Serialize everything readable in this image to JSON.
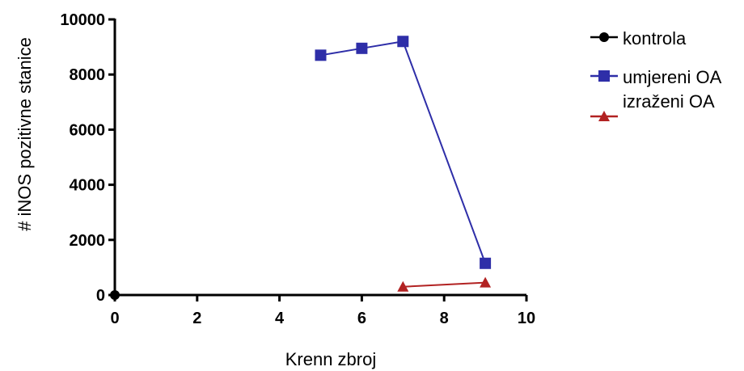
{
  "chart_data": {
    "type": "line",
    "xlabel": "Krenn zbroj",
    "ylabel": "# iNOS pozitivne stanice",
    "xlim": [
      0,
      10
    ],
    "ylim": [
      0,
      10000
    ],
    "xticks": [
      0,
      2,
      4,
      6,
      8,
      10
    ],
    "yticks": [
      0,
      2000,
      4000,
      6000,
      8000,
      10000
    ],
    "grid": false,
    "legend_position": "top-right",
    "series": [
      {
        "name": "kontrola",
        "color": "#000000",
        "marker": "circle",
        "x": [
          0
        ],
        "y": [
          0
        ]
      },
      {
        "name": "umjereni OA",
        "color": "#2e2ea8",
        "marker": "square",
        "x": [
          5,
          6,
          7,
          9
        ],
        "y": [
          8700,
          8950,
          9200,
          1150
        ]
      },
      {
        "name": "izraženi OA",
        "color": "#b22222",
        "marker": "triangle",
        "x": [
          7,
          9
        ],
        "y": [
          300,
          450
        ]
      }
    ]
  }
}
